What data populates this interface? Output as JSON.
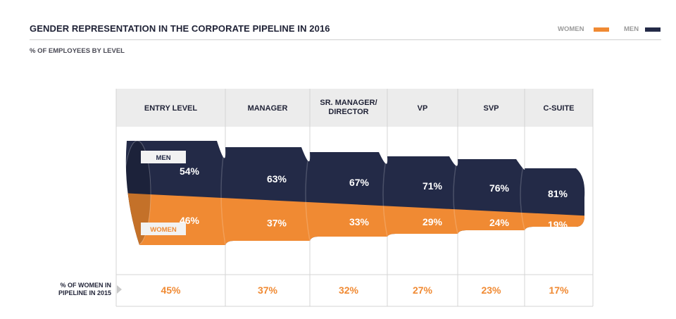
{
  "header": {
    "title": "GENDER REPRESENTATION IN THE CORPORATE PIPELINE IN 2016",
    "subtitle": "% OF EMPLOYEES BY LEVEL"
  },
  "legend": {
    "women_label": "WOMEN",
    "men_label": "MEN"
  },
  "colors": {
    "women": "#f08a33",
    "men": "#232a47",
    "header_bg": "#ececec",
    "grid": "#d4d4d4"
  },
  "tags": {
    "men": "MEN",
    "women": "WOMEN"
  },
  "pipeline": {
    "label_line1": "% OF WOMEN IN",
    "label_line2": "PIPELINE IN 2015"
  },
  "chart_data": {
    "type": "bar",
    "title": "GENDER REPRESENTATION IN THE CORPORATE PIPELINE IN 2016",
    "subtitle": "% OF EMPLOYEES BY LEVEL",
    "categories": [
      "ENTRY LEVEL",
      "MANAGER",
      "SR. MANAGER/ DIRECTOR",
      "VP",
      "SVP",
      "C-SUITE"
    ],
    "category_lines": [
      [
        "ENTRY LEVEL"
      ],
      [
        "MANAGER"
      ],
      [
        "SR. MANAGER/",
        "DIRECTOR"
      ],
      [
        "VP"
      ],
      [
        "SVP"
      ],
      [
        "C-SUITE"
      ]
    ],
    "series": [
      {
        "name": "MEN",
        "values": [
          54,
          63,
          67,
          71,
          76,
          81
        ],
        "labels": [
          "54%",
          "63%",
          "67%",
          "71%",
          "76%",
          "81%"
        ]
      },
      {
        "name": "WOMEN",
        "values": [
          46,
          37,
          33,
          29,
          24,
          19
        ],
        "labels": [
          "46%",
          "37%",
          "33%",
          "29%",
          "24%",
          "19%"
        ]
      }
    ],
    "women_pipeline_2015": {
      "name": "% OF WOMEN IN PIPELINE IN 2015",
      "values": [
        45,
        37,
        32,
        27,
        23,
        17
      ],
      "labels": [
        "45%",
        "37%",
        "32%",
        "27%",
        "23%",
        "17%"
      ]
    },
    "stacked": true,
    "ylim": [
      0,
      100
    ],
    "legend_position": "top-right"
  }
}
